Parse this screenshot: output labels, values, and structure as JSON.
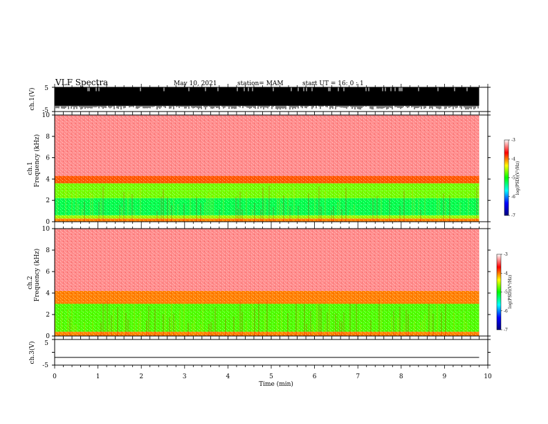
{
  "header": {
    "title": "VLF Spectra",
    "date": "May 10, 2021",
    "station": "station= MAM",
    "start": "start UT =  16: 0  : 1"
  },
  "chart_data": [
    {
      "type": "line",
      "name": "ch1-waveform",
      "ylabel": "ch.1(V)",
      "ylim": [
        -5,
        5
      ],
      "yticks": [
        "5",
        "-5"
      ],
      "xlim": [
        0,
        10
      ],
      "appearance": "dense black waveform saturating roughly between -3 and +5 V across the record"
    },
    {
      "type": "heatmap",
      "name": "ch1-spectrogram",
      "ylabel": "ch.1 Frequency (kHz)",
      "ylim": [
        0,
        10
      ],
      "yticks": [
        "0",
        "2",
        "4",
        "6",
        "8",
        "10"
      ],
      "xlim": [
        0,
        9.8
      ],
      "colorbar": {
        "label": "log(PSD)(V²/Hz)",
        "ticks": [
          "-3",
          "-4",
          "-5",
          "-6",
          "-7"
        ],
        "range": [
          -7,
          -3
        ],
        "colors": [
          "#000080",
          "#0000ff",
          "#00ffff",
          "#00ff00",
          "#ffff00",
          "#ff0000",
          "#ffffff"
        ]
      },
      "bands": [
        {
          "fmin": 0.0,
          "fmax": 0.3,
          "level": -4.0
        },
        {
          "fmin": 0.3,
          "fmax": 0.6,
          "level": -4.6
        },
        {
          "fmin": 0.6,
          "fmax": 2.2,
          "level": -5.2
        },
        {
          "fmin": 2.2,
          "fmax": 3.6,
          "level": -4.7
        },
        {
          "fmin": 3.6,
          "fmax": 4.3,
          "level": -3.9
        },
        {
          "fmin": 4.3,
          "fmax": 10.0,
          "level": -3.3
        }
      ]
    },
    {
      "type": "heatmap",
      "name": "ch2-spectrogram",
      "ylabel": "ch.2 Frequency (kHz)",
      "ylim": [
        0,
        10
      ],
      "yticks": [
        "0",
        "2",
        "4",
        "6",
        "8",
        "10"
      ],
      "xlim": [
        0,
        9.8
      ],
      "colorbar": {
        "label": "log(PSD)(V²/Hz)",
        "ticks": [
          "-3",
          "-4",
          "-5",
          "-6",
          "-7"
        ],
        "range": [
          -7,
          -3
        ],
        "colors": [
          "#000080",
          "#0000ff",
          "#00ffff",
          "#00ff00",
          "#ffff00",
          "#ff0000",
          "#ffffff"
        ]
      },
      "bands": [
        {
          "fmin": 0.0,
          "fmax": 0.4,
          "level": -4.0
        },
        {
          "fmin": 0.4,
          "fmax": 3.0,
          "level": -4.8
        },
        {
          "fmin": 3.0,
          "fmax": 4.2,
          "level": -4.0
        },
        {
          "fmin": 4.2,
          "fmax": 10.0,
          "level": -3.3
        }
      ]
    },
    {
      "type": "line",
      "name": "ch3-waveform",
      "ylabel": "ch.3(V)",
      "ylim": [
        -5,
        5
      ],
      "yticks": [
        "5",
        "0",
        "-5"
      ],
      "xlim": [
        0,
        10
      ],
      "x": [
        0,
        9.8
      ],
      "y": [
        -2,
        -2
      ]
    }
  ],
  "xaxis": {
    "label": "Time (min)",
    "ticks": [
      "0",
      "1",
      "2",
      "3",
      "4",
      "5",
      "6",
      "7",
      "8",
      "9",
      "10"
    ],
    "xlim": [
      0,
      10
    ]
  }
}
